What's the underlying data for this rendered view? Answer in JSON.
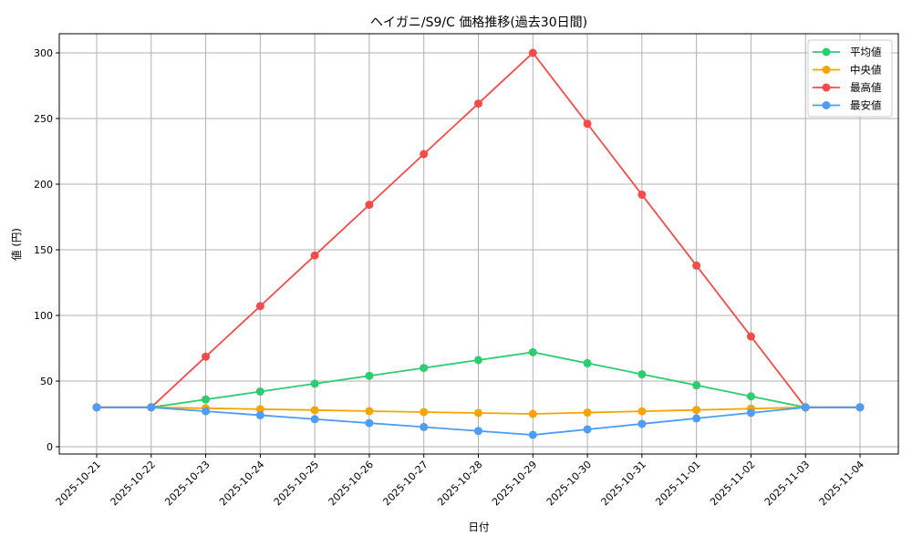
{
  "chart_data": {
    "type": "line",
    "title": "ヘイガニ/S9/C 価格推移(過去30日間)",
    "xlabel": "日付",
    "ylabel": "値 (円)",
    "categories": [
      "2025-10-21",
      "2025-10-22",
      "2025-10-23",
      "2025-10-24",
      "2025-10-25",
      "2025-10-26",
      "2025-10-27",
      "2025-10-28",
      "2025-10-29",
      "2025-10-30",
      "2025-10-31",
      "2025-11-01",
      "2025-11-02",
      "2025-11-03",
      "2025-11-04"
    ],
    "yticks": [
      0,
      50,
      100,
      150,
      200,
      250,
      300
    ],
    "ylim": [
      -10,
      315
    ],
    "grid": true,
    "legend_position": "upper right",
    "series": [
      {
        "name": "平均値",
        "color": "#2ecc71",
        "values": [
          30,
          30,
          36,
          42,
          48,
          54,
          60,
          66,
          72,
          63.6,
          55.2,
          46.8,
          38.4,
          30,
          30
        ]
      },
      {
        "name": "中央値",
        "color": "#f5a500",
        "values": [
          30,
          30,
          29.3,
          28.6,
          27.9,
          27.1,
          26.4,
          25.7,
          25,
          26,
          27,
          28,
          29,
          30,
          30
        ]
      },
      {
        "name": "最高値",
        "color": "#f44b4b",
        "values": [
          30,
          30,
          68.6,
          107.1,
          145.7,
          184.3,
          222.9,
          261.4,
          300,
          246,
          192,
          138,
          84,
          30,
          30
        ]
      },
      {
        "name": "最安値",
        "color": "#4f9cf5",
        "values": [
          30,
          30,
          27,
          24,
          21,
          18,
          15,
          12,
          9,
          13.2,
          17.4,
          21.6,
          25.8,
          30,
          30
        ]
      }
    ]
  }
}
